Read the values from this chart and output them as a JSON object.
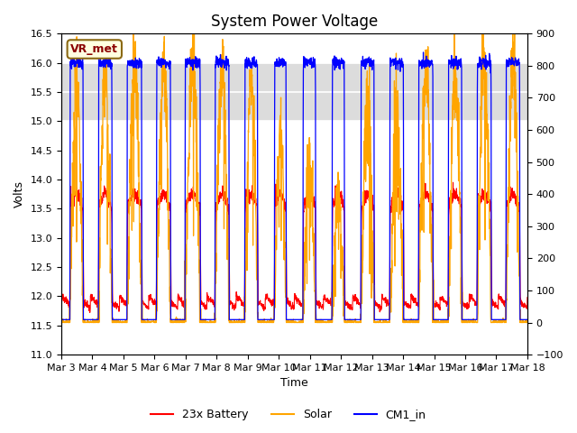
{
  "title": "System Power Voltage",
  "xlabel": "Time",
  "ylabel_left": "Volts",
  "ylim_left": [
    11.0,
    16.5
  ],
  "ylim_right": [
    -100,
    900
  ],
  "yticks_left": [
    11.0,
    11.5,
    12.0,
    12.5,
    13.0,
    13.5,
    14.0,
    14.5,
    15.0,
    15.5,
    16.0,
    16.5
  ],
  "yticks_right": [
    -100,
    0,
    100,
    200,
    300,
    400,
    500,
    600,
    700,
    800,
    900
  ],
  "xtick_labels": [
    "Mar 3",
    "Mar 4",
    "Mar 5",
    "Mar 6",
    "Mar 7",
    "Mar 8",
    "Mar 9",
    "Mar 10",
    "Mar 11",
    "Mar 12",
    "Mar 13",
    "Mar 14",
    "Mar 15",
    "Mar 16",
    "Mar 17",
    "Mar 18"
  ],
  "legend_labels": [
    "23x Battery",
    "Solar",
    "CM1_in"
  ],
  "legend_colors": [
    "#FF0000",
    "#FFA500",
    "#0000FF"
  ],
  "annotation_text": "VR_met",
  "annotation_color": "#8B0000",
  "annotation_bg": "#FFFFE0",
  "annotation_edge": "#8B6914",
  "bg_band_color": "#DCDCDC",
  "bg_band_ylim": [
    15.0,
    16.0
  ],
  "grid_color": "#FFFFFF",
  "title_fontsize": 12,
  "axis_label_fontsize": 9,
  "tick_fontsize": 8
}
